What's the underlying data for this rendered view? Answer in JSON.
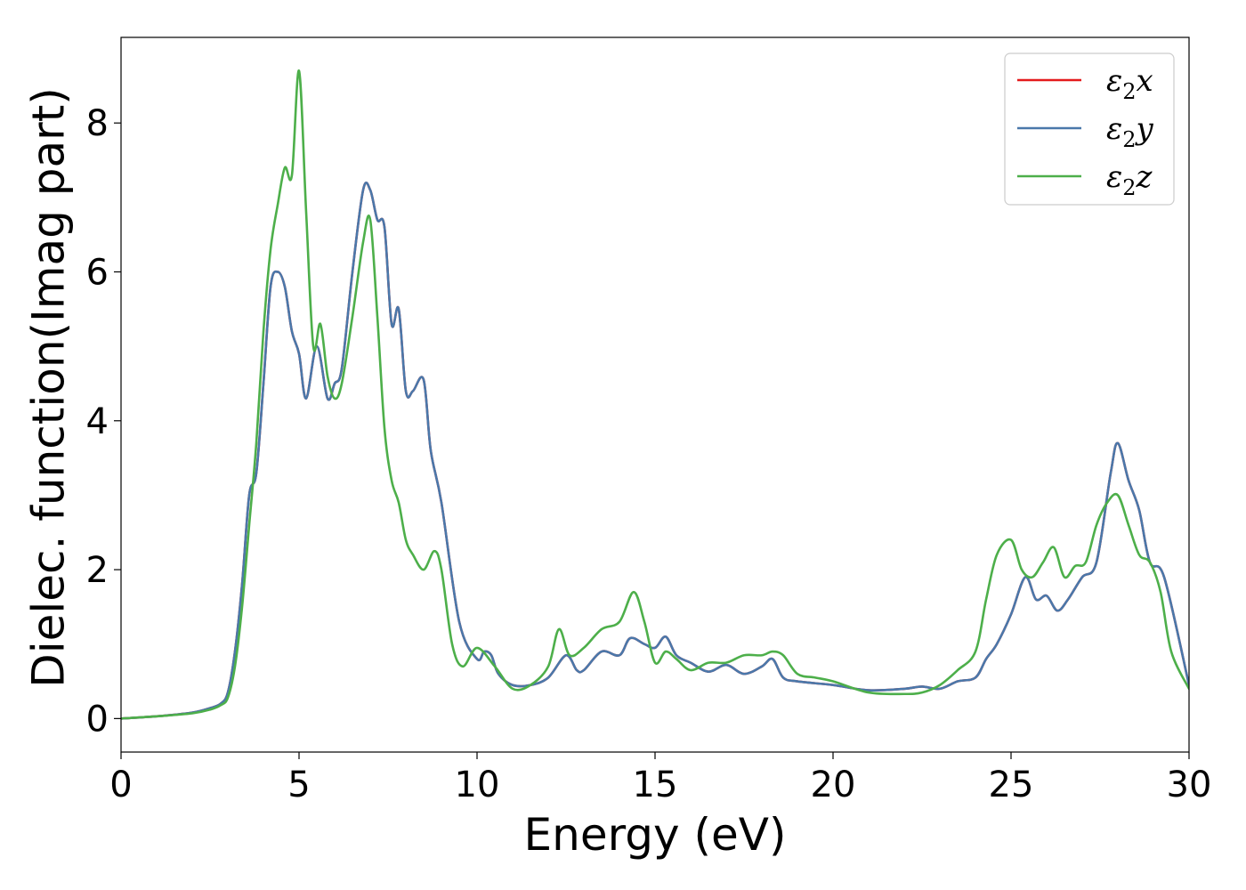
{
  "chart_data": {
    "type": "line",
    "title": "",
    "xlabel": "Energy (eV)",
    "ylabel": "Dielec. function(Imag part)",
    "xlim": [
      0,
      30
    ],
    "ylim": [
      -0.45,
      9.15
    ],
    "xticks": [
      0,
      5,
      10,
      15,
      20,
      25,
      30
    ],
    "yticks": [
      0,
      2,
      4,
      6,
      8
    ],
    "grid": false,
    "legend_position": "top-right",
    "series": [
      {
        "name": "ε2x",
        "name_base": "ε",
        "name_sub": "2",
        "name_tail": "x",
        "color": "#e41a1c",
        "x": [
          0,
          1,
          2,
          2.5,
          2.8,
          3.0,
          3.2,
          3.4,
          3.6,
          3.8,
          4.0,
          4.2,
          4.4,
          4.6,
          4.8,
          5.0,
          5.2,
          5.5,
          5.8,
          6.0,
          6.2,
          6.5,
          6.8,
          7.0,
          7.2,
          7.4,
          7.6,
          7.8,
          8.0,
          8.2,
          8.5,
          8.7,
          9.0,
          9.5,
          10.0,
          10.2,
          10.4,
          10.6,
          11.0,
          11.5,
          12.0,
          12.5,
          12.8,
          13.0,
          13.5,
          14.0,
          14.3,
          14.7,
          15.0,
          15.3,
          15.6,
          16.0,
          16.5,
          17.0,
          17.5,
          18.0,
          18.3,
          18.6,
          19.0,
          20.0,
          21.0,
          22.0,
          22.5,
          23.0,
          23.5,
          24.0,
          24.3,
          24.6,
          25.0,
          25.4,
          25.7,
          26.0,
          26.3,
          26.6,
          27.0,
          27.4,
          27.8,
          28.0,
          28.3,
          28.6,
          28.9,
          29.3,
          30.0
        ],
        "y": [
          0,
          0.03,
          0.08,
          0.14,
          0.2,
          0.35,
          0.9,
          1.8,
          3.0,
          3.3,
          4.5,
          5.8,
          6.0,
          5.8,
          5.2,
          4.9,
          4.3,
          5.0,
          4.3,
          4.5,
          4.7,
          6.0,
          7.1,
          7.1,
          6.7,
          6.6,
          5.3,
          5.5,
          4.4,
          4.4,
          4.55,
          3.6,
          2.9,
          1.3,
          0.8,
          0.9,
          0.85,
          0.6,
          0.45,
          0.45,
          0.55,
          0.85,
          0.65,
          0.65,
          0.9,
          0.85,
          1.08,
          1.0,
          0.95,
          1.1,
          0.85,
          0.75,
          0.63,
          0.72,
          0.6,
          0.7,
          0.8,
          0.55,
          0.5,
          0.45,
          0.38,
          0.4,
          0.43,
          0.4,
          0.5,
          0.55,
          0.8,
          1.0,
          1.4,
          1.9,
          1.6,
          1.65,
          1.45,
          1.6,
          1.9,
          2.1,
          3.3,
          3.7,
          3.2,
          2.8,
          2.1,
          1.9,
          0.45
        ]
      },
      {
        "name": "ε2y",
        "name_base": "ε",
        "name_sub": "2",
        "name_tail": "y",
        "color": "#4a78aa",
        "x": [
          0,
          1,
          2,
          2.5,
          2.8,
          3.0,
          3.2,
          3.4,
          3.6,
          3.8,
          4.0,
          4.2,
          4.4,
          4.6,
          4.8,
          5.0,
          5.2,
          5.5,
          5.8,
          6.0,
          6.2,
          6.5,
          6.8,
          7.0,
          7.2,
          7.4,
          7.6,
          7.8,
          8.0,
          8.2,
          8.5,
          8.7,
          9.0,
          9.5,
          10.0,
          10.2,
          10.4,
          10.6,
          11.0,
          11.5,
          12.0,
          12.5,
          12.8,
          13.0,
          13.5,
          14.0,
          14.3,
          14.7,
          15.0,
          15.3,
          15.6,
          16.0,
          16.5,
          17.0,
          17.5,
          18.0,
          18.3,
          18.6,
          19.0,
          20.0,
          21.0,
          22.0,
          22.5,
          23.0,
          23.5,
          24.0,
          24.3,
          24.6,
          25.0,
          25.4,
          25.7,
          26.0,
          26.3,
          26.6,
          27.0,
          27.4,
          27.8,
          28.0,
          28.3,
          28.6,
          28.9,
          29.3,
          30.0
        ],
        "y": [
          0,
          0.03,
          0.08,
          0.14,
          0.2,
          0.35,
          0.9,
          1.8,
          3.0,
          3.3,
          4.5,
          5.8,
          6.0,
          5.8,
          5.2,
          4.9,
          4.3,
          5.0,
          4.3,
          4.5,
          4.7,
          6.0,
          7.1,
          7.1,
          6.7,
          6.6,
          5.3,
          5.5,
          4.4,
          4.4,
          4.55,
          3.6,
          2.9,
          1.3,
          0.8,
          0.9,
          0.85,
          0.6,
          0.45,
          0.45,
          0.55,
          0.85,
          0.65,
          0.65,
          0.9,
          0.85,
          1.08,
          1.0,
          0.95,
          1.1,
          0.85,
          0.75,
          0.63,
          0.72,
          0.6,
          0.7,
          0.8,
          0.55,
          0.5,
          0.45,
          0.38,
          0.4,
          0.43,
          0.4,
          0.5,
          0.55,
          0.8,
          1.0,
          1.4,
          1.9,
          1.6,
          1.65,
          1.45,
          1.6,
          1.9,
          2.1,
          3.3,
          3.7,
          3.2,
          2.8,
          2.1,
          1.9,
          0.45
        ]
      },
      {
        "name": "ε2z",
        "name_base": "ε",
        "name_sub": "2",
        "name_tail": "z",
        "color": "#4daf4a",
        "x": [
          0,
          1,
          2,
          2.5,
          2.8,
          3.0,
          3.2,
          3.4,
          3.6,
          3.8,
          4.0,
          4.2,
          4.4,
          4.6,
          4.8,
          5.0,
          5.2,
          5.4,
          5.6,
          5.8,
          6.0,
          6.2,
          6.5,
          6.8,
          7.0,
          7.2,
          7.4,
          7.6,
          7.8,
          8.0,
          8.2,
          8.5,
          8.8,
          9.0,
          9.3,
          9.6,
          10.0,
          10.5,
          11.0,
          11.5,
          12.0,
          12.3,
          12.6,
          13.0,
          13.5,
          14.0,
          14.4,
          14.7,
          15.0,
          15.3,
          15.6,
          16.0,
          16.5,
          17.0,
          17.5,
          18.0,
          18.3,
          18.6,
          19.0,
          19.5,
          20.0,
          21.0,
          22.0,
          22.5,
          23.0,
          23.5,
          24.0,
          24.3,
          24.6,
          25.0,
          25.3,
          25.6,
          25.9,
          26.2,
          26.5,
          26.8,
          27.1,
          27.4,
          27.7,
          28.0,
          28.3,
          28.6,
          28.9,
          29.2,
          29.5,
          30.0
        ],
        "y": [
          0,
          0.03,
          0.07,
          0.12,
          0.18,
          0.28,
          0.7,
          1.5,
          2.6,
          3.7,
          5.2,
          6.3,
          6.9,
          7.4,
          7.3,
          8.7,
          6.8,
          5.0,
          5.3,
          4.6,
          4.3,
          4.5,
          5.4,
          6.4,
          6.7,
          5.4,
          3.9,
          3.2,
          2.9,
          2.4,
          2.2,
          2.0,
          2.25,
          2.0,
          1.0,
          0.7,
          0.95,
          0.7,
          0.4,
          0.45,
          0.7,
          1.2,
          0.85,
          0.95,
          1.2,
          1.3,
          1.7,
          1.3,
          0.75,
          0.9,
          0.8,
          0.65,
          0.75,
          0.75,
          0.85,
          0.85,
          0.9,
          0.85,
          0.6,
          0.55,
          0.5,
          0.35,
          0.33,
          0.35,
          0.45,
          0.65,
          0.9,
          1.6,
          2.2,
          2.4,
          2.0,
          1.9,
          2.1,
          2.3,
          1.9,
          2.05,
          2.1,
          2.6,
          2.9,
          3.0,
          2.6,
          2.2,
          2.1,
          1.7,
          0.9,
          0.4
        ]
      }
    ]
  }
}
